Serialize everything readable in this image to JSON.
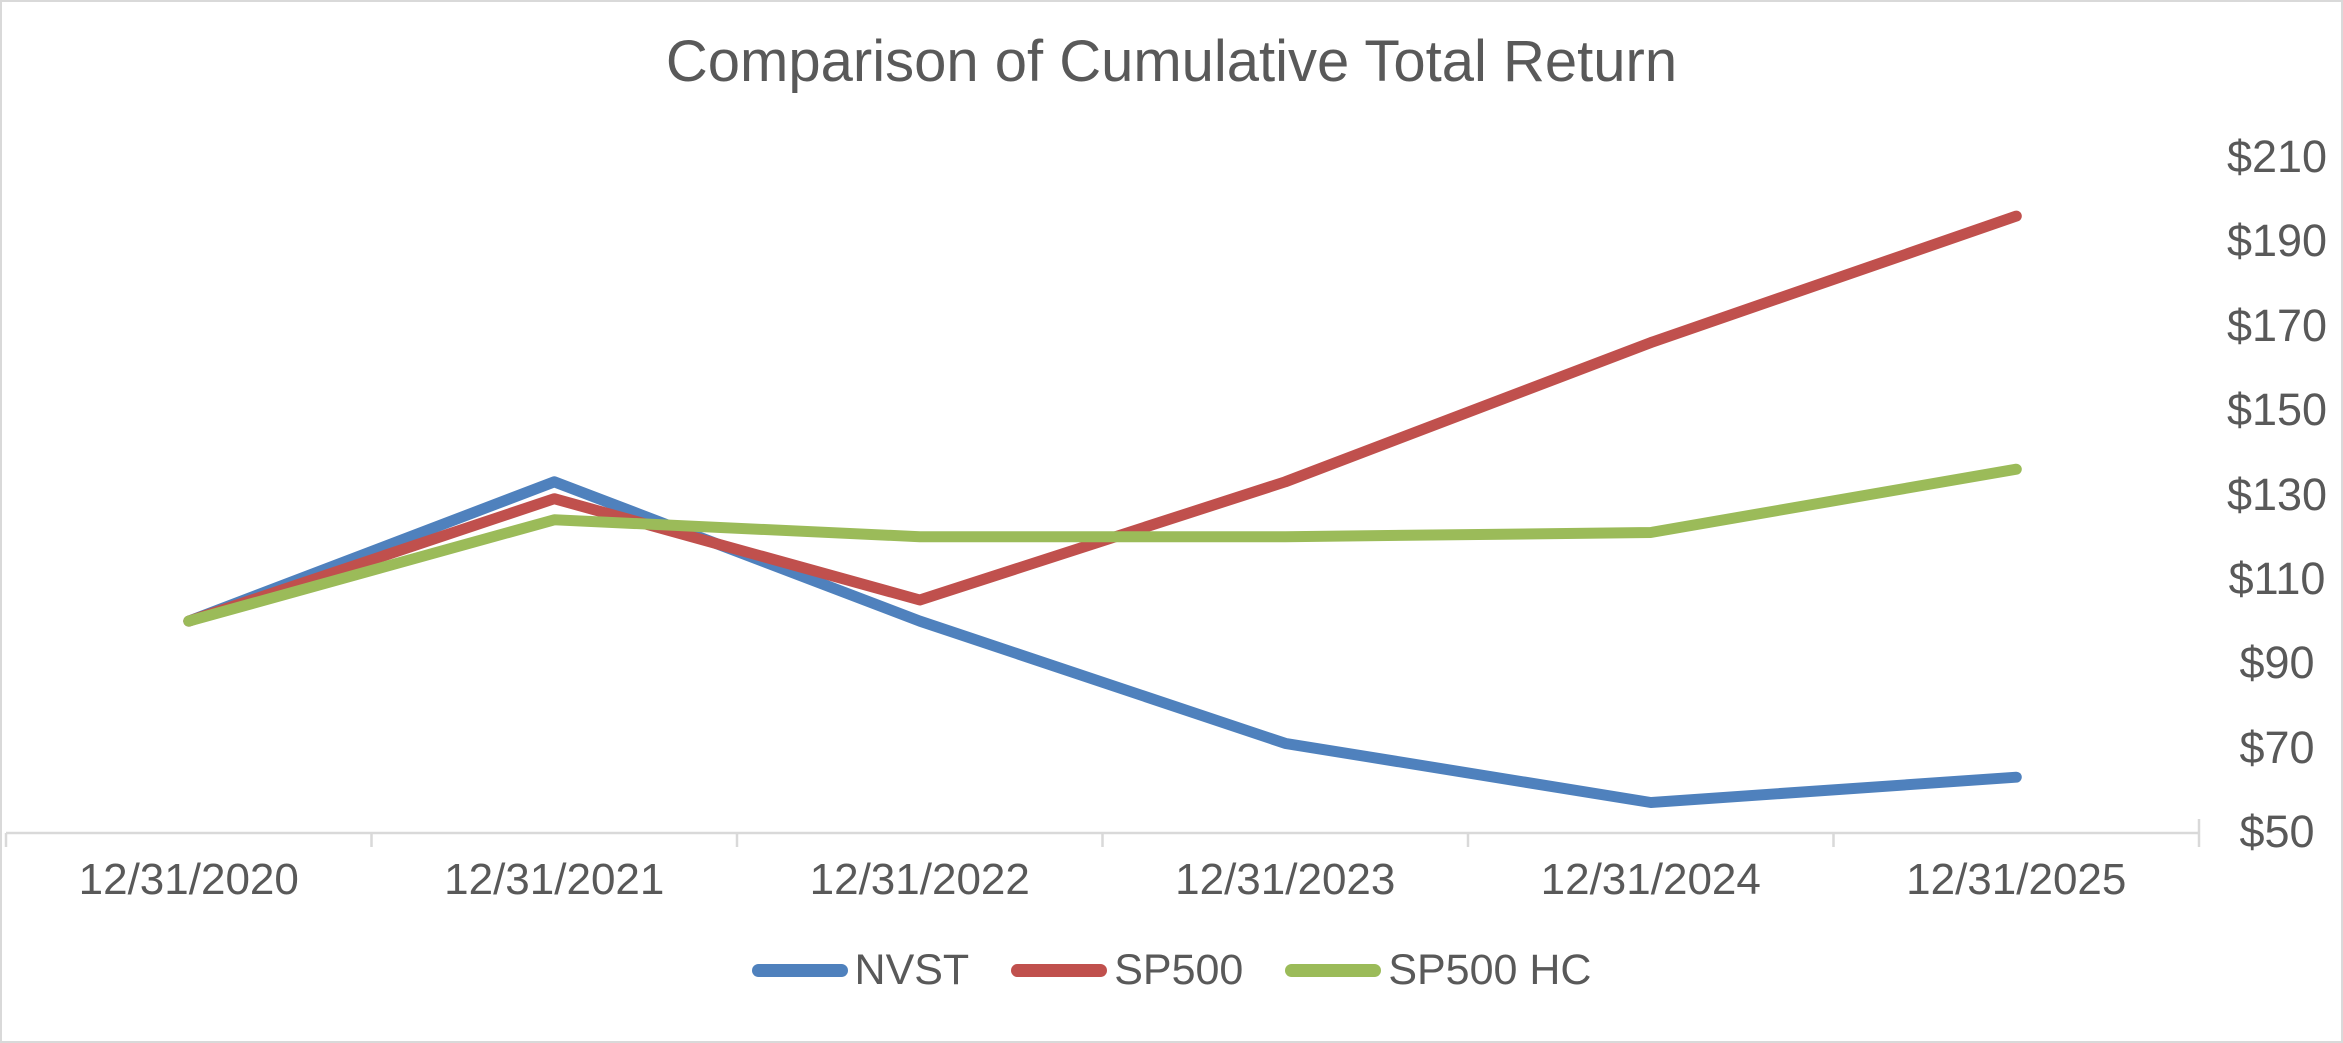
{
  "chart_data": {
    "type": "line",
    "title": "Comparison of Cumulative Total Return",
    "categories": [
      "12/31/2020",
      "12/31/2021",
      "12/31/2022",
      "12/31/2023",
      "12/31/2024",
      "12/31/2025"
    ],
    "series": [
      {
        "name": "NVST",
        "color": "#4F81BD",
        "values": [
          100,
          133,
          100,
          71,
          57,
          63
        ]
      },
      {
        "name": "SP500",
        "color": "#C0504D",
        "values": [
          100,
          129,
          105,
          133,
          166,
          196
        ]
      },
      {
        "name": "SP500 HC",
        "color": "#9BBB59",
        "values": [
          100,
          124,
          120,
          120,
          121,
          136
        ]
      }
    ],
    "y_ticks": [
      50,
      70,
      90,
      110,
      130,
      150,
      170,
      190,
      210
    ],
    "y_tick_labels": [
      "$50",
      "$70",
      "$90",
      "$110",
      "$130",
      "$150",
      "$170",
      "$190",
      "$210"
    ],
    "ylim": [
      50,
      210
    ],
    "xlabel": "",
    "ylabel": "",
    "y_axis_side": "right",
    "grid": false,
    "legend_position": "bottom",
    "line_width": 11,
    "axis_color": "#D9D9D9",
    "text_color": "#595959"
  }
}
